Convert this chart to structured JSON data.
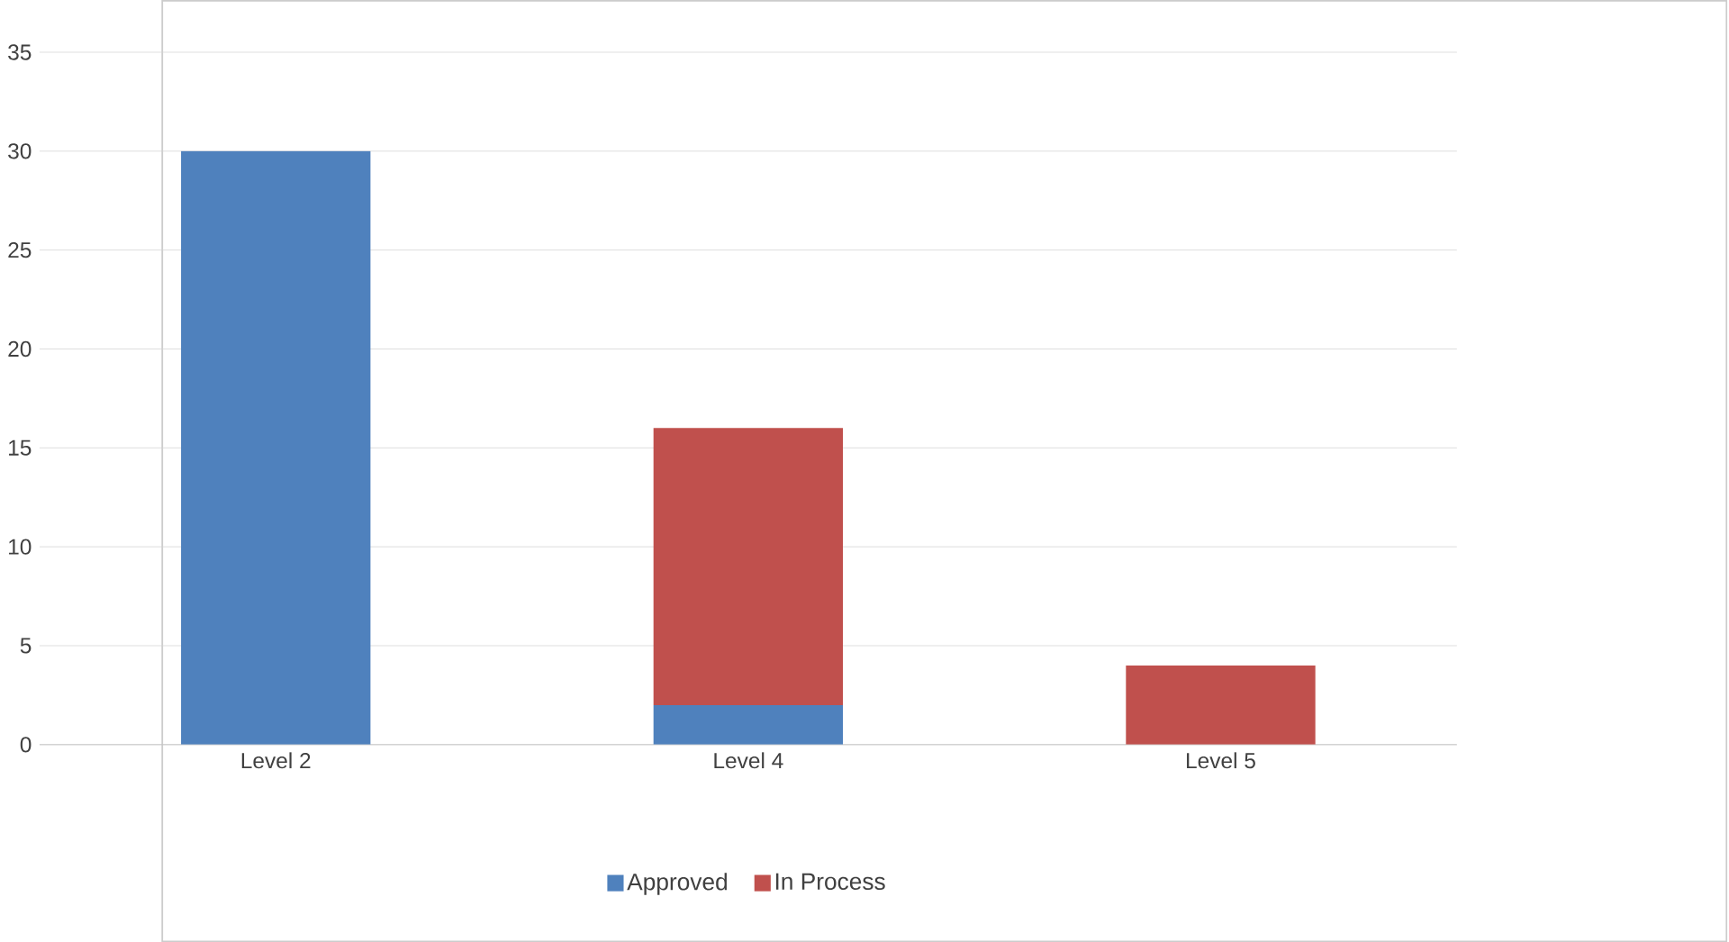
{
  "chart_data": {
    "type": "bar",
    "stacked": true,
    "categories": [
      "Level 2",
      "Level 4",
      "Level 5"
    ],
    "series": [
      {
        "name": "Approved",
        "color": "#4f81bd",
        "values": [
          30,
          2,
          0
        ]
      },
      {
        "name": "In Process",
        "color": "#c0504d",
        "values": [
          0,
          14,
          4
        ]
      }
    ],
    "ylim": [
      0,
      35
    ],
    "yticks": [
      0,
      5,
      10,
      15,
      20,
      25,
      30,
      35
    ],
    "grid": "y",
    "legend": "bottom"
  }
}
